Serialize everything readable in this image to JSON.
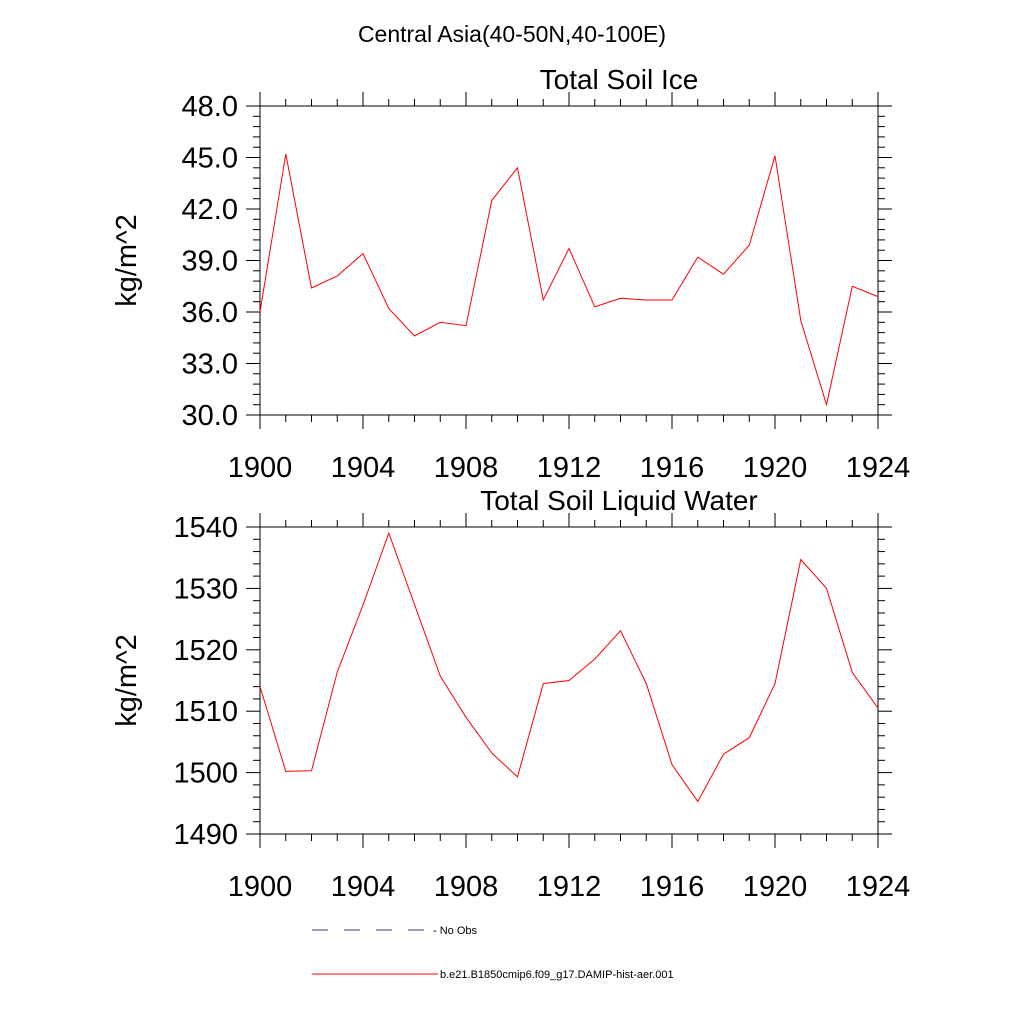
{
  "figure": {
    "title": "Central Asia(40-50N,40-100E)"
  },
  "legend": {
    "entries": [
      {
        "label": "No Obs",
        "color": "#3a3a6a",
        "style": "dashed"
      },
      {
        "label": "b.e21.B1850cmip6.f09_g17.DAMIP-hist-aer.001",
        "color": "#ff0000",
        "style": "solid"
      }
    ]
  },
  "chart_data": [
    {
      "type": "line",
      "title": "Total Soil Ice",
      "xlabel": "",
      "ylabel": "kg/m^2",
      "xlim": [
        1900,
        1924
      ],
      "ylim": [
        30,
        48
      ],
      "xticks": [
        "1900",
        "1904",
        "1908",
        "1912",
        "1916",
        "1920",
        "1924"
      ],
      "yticks": [
        "30.0",
        "33.0",
        "36.0",
        "39.0",
        "42.0",
        "45.0",
        "48.0"
      ],
      "series": [
        {
          "name": "b.e21.B1850cmip6.f09_g17.DAMIP-hist-aer.001",
          "color": "#ff0000",
          "x": [
            1900,
            1901,
            1902,
            1903,
            1904,
            1905,
            1906,
            1907,
            1908,
            1909,
            1910,
            1911,
            1912,
            1913,
            1914,
            1915,
            1916,
            1917,
            1918,
            1919,
            1920,
            1921,
            1922,
            1923,
            1924
          ],
          "values": [
            36.0,
            45.2,
            37.4,
            38.1,
            39.4,
            36.2,
            34.6,
            35.4,
            35.2,
            42.5,
            44.4,
            36.7,
            39.7,
            36.3,
            36.8,
            36.7,
            36.7,
            39.2,
            38.2,
            39.9,
            45.1,
            35.5,
            30.6,
            37.5,
            36.9
          ]
        }
      ]
    },
    {
      "type": "line",
      "title": "Total Soil Liquid Water",
      "xlabel": "",
      "ylabel": "kg/m^2",
      "xlim": [
        1900,
        1924
      ],
      "ylim": [
        1490,
        1540
      ],
      "xticks": [
        "1900",
        "1904",
        "1908",
        "1912",
        "1916",
        "1920",
        "1924"
      ],
      "yticks": [
        "1490",
        "1500",
        "1510",
        "1520",
        "1530",
        "1540"
      ],
      "series": [
        {
          "name": "b.e21.B1850cmip6.f09_g17.DAMIP-hist-aer.001",
          "color": "#ff0000",
          "x": [
            1900,
            1901,
            1902,
            1903,
            1904,
            1905,
            1906,
            1907,
            1908,
            1909,
            1910,
            1911,
            1912,
            1913,
            1914,
            1915,
            1916,
            1917,
            1918,
            1919,
            1920,
            1921,
            1922,
            1923,
            1924
          ],
          "values": [
            1514.0,
            1500.2,
            1500.3,
            1516.4,
            1527.3,
            1539.0,
            1527.4,
            1515.7,
            1509.0,
            1503.2,
            1499.3,
            1514.5,
            1515.0,
            1518.5,
            1523.1,
            1514.5,
            1501.3,
            1495.3,
            1503.0,
            1505.7,
            1514.5,
            1534.7,
            1530.0,
            1516.3,
            1510.5
          ]
        }
      ]
    }
  ]
}
